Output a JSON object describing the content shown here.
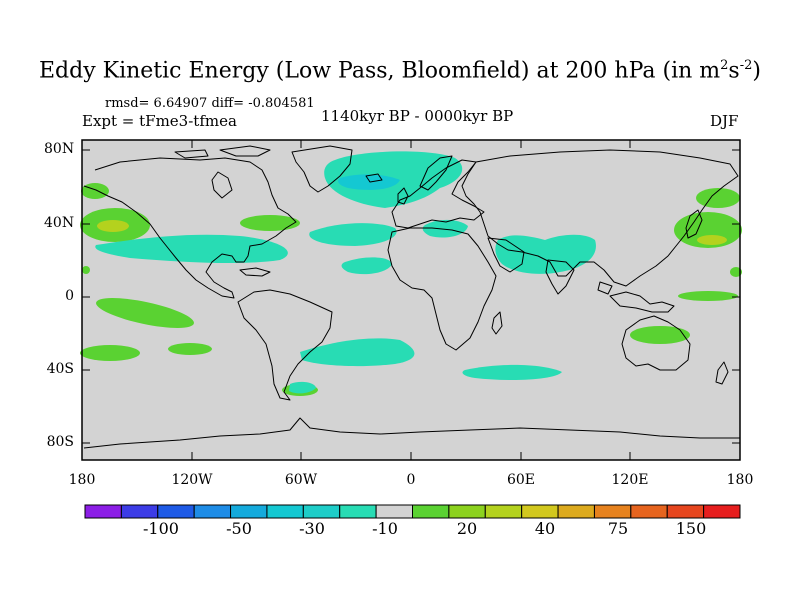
{
  "title": {
    "main": "Eddy Kinetic Energy (Low Pass, Bloomfield) at 200 hPa (in m",
    "exp1": "2",
    "mid": "s",
    "exp2": "-2",
    "close": ")"
  },
  "stats_line": "rmsd= 6.64907 diff= -0.804581",
  "experiment": "Expt = tFme3-tfmea",
  "period": "1140kyr BP - 0000kyr BP",
  "season": "DJF",
  "lat_labels": [
    "80N",
    "40N",
    "0",
    "40S",
    "80S"
  ],
  "lon_labels": [
    "180",
    "120W",
    "60W",
    "0",
    "60E",
    "120E",
    "180"
  ],
  "colorbar": {
    "labels": [
      "-100",
      "-50",
      "-30",
      "-10",
      "20",
      "40",
      "75",
      "150"
    ],
    "colors": [
      "#8c1ee6",
      "#3c3ce6",
      "#1e5ae6",
      "#1e8ce6",
      "#14aadc",
      "#14c8d2",
      "#1ecdc8",
      "#28dcb4",
      "#d3d3d3",
      "#5ad232",
      "#8cd21e",
      "#b4d21e",
      "#d2c81e",
      "#dcaa1e",
      "#e6821e",
      "#e6641e",
      "#e6461e",
      "#e61e1e"
    ]
  },
  "colors": {
    "land_ocean_background": "#d3d3d3",
    "positive_anomaly": "#5ad232",
    "positive_core": "#b4d21e",
    "negative_anomaly": "#28dcb4",
    "negative_core": "#14c8d2"
  }
}
